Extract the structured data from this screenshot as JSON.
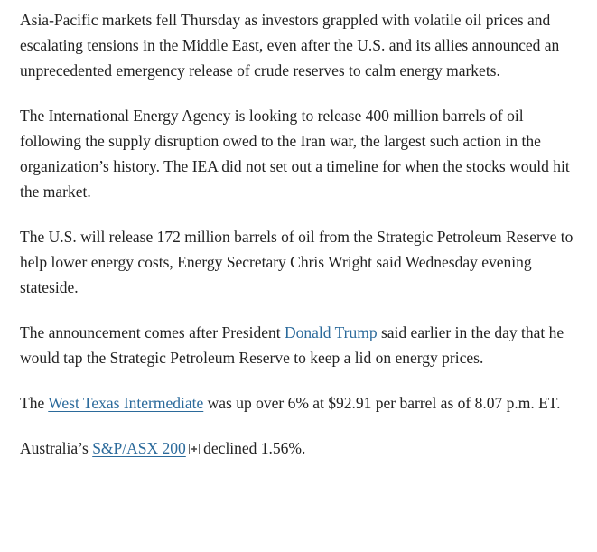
{
  "paragraphs": [
    {
      "segments": [
        {
          "text": "Asia-Pacific markets fell Thursday as investors grappled with volatile oil prices and escalating tensions in the Middle East, even after the U.S. and its allies announced an unprecedented emergency release of crude reserves to calm energy markets.",
          "link": false
        }
      ]
    },
    {
      "segments": [
        {
          "text": "The International Energy Agency is looking to release 400 million barrels of oil following the supply disruption owed to the Iran war, the largest such action in the organization’s history. The IEA did not set out a timeline for when the stocks would hit the market.",
          "link": false
        }
      ]
    },
    {
      "segments": [
        {
          "text": "The U.S. will release 172 million barrels of oil from the Strategic Petroleum Reserve to help lower energy costs, Energy Secretary Chris Wright said Wednesday evening stateside.",
          "link": false
        }
      ]
    },
    {
      "segments": [
        {
          "text": "The announcement comes after President ",
          "link": false
        },
        {
          "text": "Donald Trump",
          "link": true
        },
        {
          "text": " said earlier in the day that he would tap the Strategic Petroleum Reserve to keep a lid on energy prices.",
          "link": false
        }
      ]
    },
    {
      "segments": [
        {
          "text": "The ",
          "link": false
        },
        {
          "text": "West Texas Intermediate",
          "link": true
        },
        {
          "text": " was up over 6% at $92.91 per barrel as of 8.07 p.m. ET.",
          "link": false
        }
      ]
    },
    {
      "segments": [
        {
          "text": "Australia’s ",
          "link": false
        },
        {
          "text": "S&P/ASX 200",
          "link": true,
          "quote_icon": true
        },
        {
          "text": " declined 1.56%.",
          "link": false
        }
      ]
    }
  ]
}
